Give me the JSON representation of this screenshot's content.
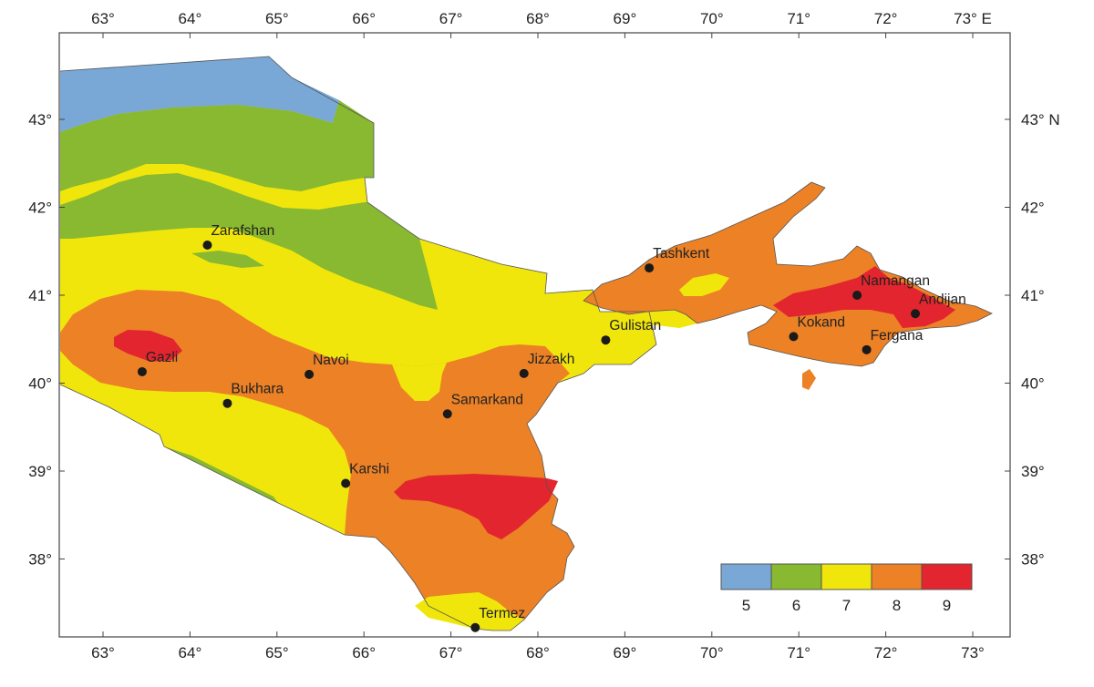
{
  "map": {
    "top_axis_labels": [
      "63°",
      "64°",
      "65°",
      "66°",
      "67°",
      "68°",
      "69°",
      "70°",
      "71°",
      "72°",
      "73° E"
    ],
    "bottom_axis_labels": [
      "63°",
      "64°",
      "65°",
      "66°",
      "67°",
      "68°",
      "69°",
      "70°",
      "71°",
      "72°",
      "73°"
    ],
    "left_axis_labels": [
      "43°",
      "42°",
      "41°",
      "40°",
      "39°",
      "38°"
    ],
    "right_axis_labels": [
      "43° N",
      "42°",
      "41°",
      "40°",
      "39°",
      "38°"
    ],
    "cities": [
      {
        "name": "Zarafshan",
        "lon": 64.2,
        "lat": 41.57
      },
      {
        "name": "Tashkent",
        "lon": 69.28,
        "lat": 41.31
      },
      {
        "name": "Namangan",
        "lon": 71.67,
        "lat": 41.0
      },
      {
        "name": "Andijan",
        "lon": 72.34,
        "lat": 40.79
      },
      {
        "name": "Gulistan",
        "lon": 68.78,
        "lat": 40.49
      },
      {
        "name": "Kokand",
        "lon": 70.94,
        "lat": 40.53
      },
      {
        "name": "Fergana",
        "lon": 71.78,
        "lat": 40.38
      },
      {
        "name": "Gazli",
        "lon": 63.45,
        "lat": 40.13
      },
      {
        "name": "Navoi",
        "lon": 65.37,
        "lat": 40.1
      },
      {
        "name": "Jizzakh",
        "lon": 67.84,
        "lat": 40.11
      },
      {
        "name": "Bukhara",
        "lon": 64.43,
        "lat": 39.77
      },
      {
        "name": "Samarkand",
        "lon": 66.96,
        "lat": 39.65
      },
      {
        "name": "Karshi",
        "lon": 65.79,
        "lat": 38.86
      },
      {
        "name": "Termez",
        "lon": 67.28,
        "lat": 37.22
      }
    ],
    "zone_colors": {
      "5": "#79a7d6",
      "6": "#88b930",
      "7": "#f0e60c",
      "8": "#ec8126",
      "9": "#e2252e"
    },
    "legend": {
      "classes": [
        {
          "label": "5",
          "color": "#79a7d6"
        },
        {
          "label": "6",
          "color": "#88b930"
        },
        {
          "label": "7",
          "color": "#f0e60c"
        },
        {
          "label": "8",
          "color": "#ec8126"
        },
        {
          "label": "9",
          "color": "#e2252e"
        }
      ]
    }
  }
}
